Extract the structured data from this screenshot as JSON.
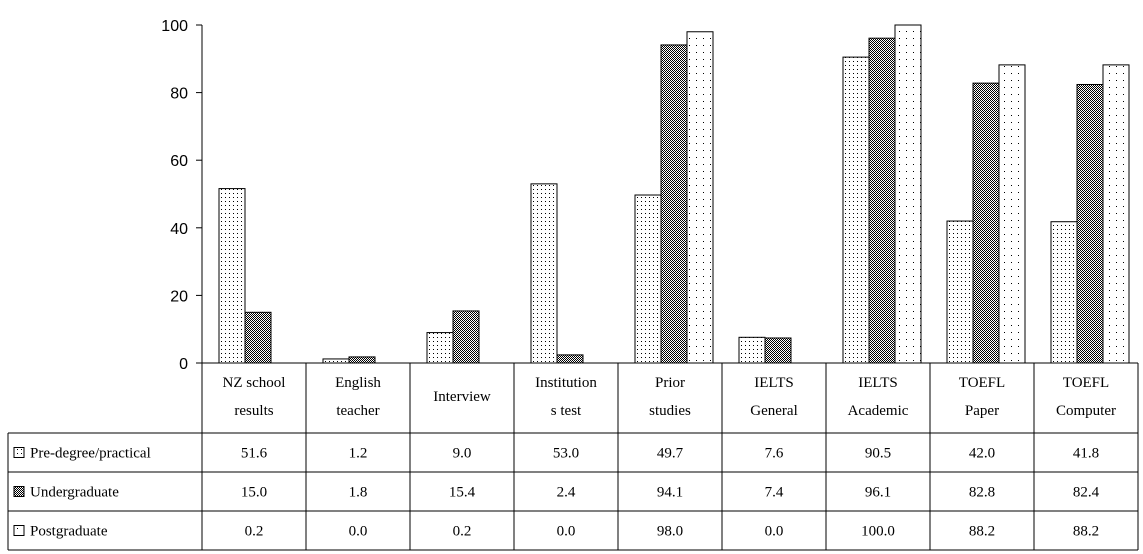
{
  "chart_data": {
    "type": "bar",
    "title": "",
    "xlabel": "",
    "ylabel": "",
    "ylim": [
      0,
      100
    ],
    "yticks": [
      0,
      20,
      40,
      60,
      80,
      100
    ],
    "grid": false,
    "legend": "data-table",
    "categories": [
      [
        "NZ school",
        "results"
      ],
      [
        "English",
        "teacher"
      ],
      [
        "Interview"
      ],
      [
        "Institution",
        "s test"
      ],
      [
        "Prior",
        "studies"
      ],
      [
        "IELTS",
        "General"
      ],
      [
        "IELTS",
        "Academic"
      ],
      [
        "TOEFL",
        "Paper"
      ],
      [
        "TOEFL",
        "Computer"
      ]
    ],
    "series": [
      {
        "name": "Pre-degree/practical",
        "pattern": "sparse-dots",
        "values": [
          51.6,
          1.2,
          9.0,
          53.0,
          49.7,
          7.6,
          90.5,
          42.0,
          41.8
        ],
        "labels": [
          "51.6",
          "1.2",
          "9.0",
          "53.0",
          "49.7",
          "7.6",
          "90.5",
          "42.0",
          "41.8"
        ]
      },
      {
        "name": "Undergraduate",
        "pattern": "checker",
        "values": [
          15.0,
          1.8,
          15.4,
          2.4,
          94.1,
          7.4,
          96.1,
          82.8,
          82.4
        ],
        "labels": [
          "15.0",
          "1.8",
          "15.4",
          "2.4",
          "94.1",
          "7.4",
          "96.1",
          "82.8",
          "82.4"
        ]
      },
      {
        "name": "Postgraduate",
        "pattern": "edge-dots",
        "values": [
          0.2,
          0.0,
          0.2,
          0.0,
          98.0,
          0.0,
          100.0,
          88.2,
          88.2
        ],
        "labels": [
          "0.2",
          "0.0",
          "0.2",
          "0.0",
          "98.0",
          "0.0",
          "100.0",
          "88.2",
          "88.2"
        ]
      }
    ]
  }
}
